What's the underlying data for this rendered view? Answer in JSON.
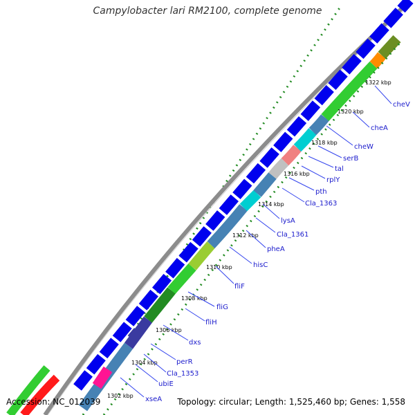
{
  "title": "Campylobacter lari RM2100, complete genome",
  "accession": "Accession: NC_012039",
  "summary": "Topology: circular; Length: 1,525,460 bp; Genes: 1,558",
  "colors": {
    "cds_forward": "#0000ee",
    "cds_reverse_navy": "#3a3aa0",
    "backbone": "#888888",
    "dots": "#228b22",
    "label": "#1a1acc"
  },
  "kbp_ticks": [
    "1302 kbp",
    "1304 kbp",
    "1306 kbp",
    "1308 kbp",
    "1310 kbp",
    "1312 kbp",
    "1314 kbp",
    "1316 kbp",
    "1318 kbp",
    "1320 kbp",
    "1322 kbp"
  ],
  "gene_labels": [
    "xseA",
    "ubiE",
    "Cla_1353",
    "perR",
    "dxs",
    "fliH",
    "fliG",
    "fliF",
    "hisC",
    "pheA",
    "Cla_1361",
    "lysA",
    "Cla_1363",
    "pth",
    "rplY",
    "tal",
    "serB",
    "cheW",
    "cheA",
    "cheV"
  ]
}
